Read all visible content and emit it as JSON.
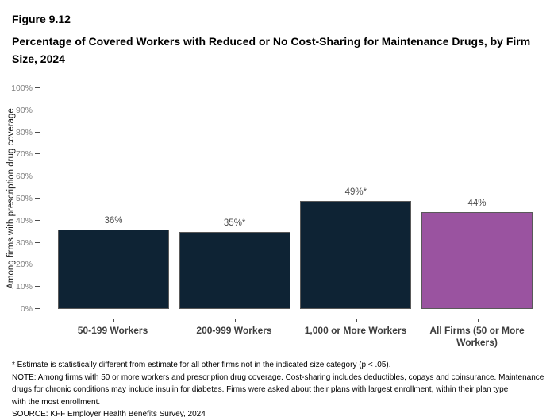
{
  "header": {
    "figure_label": "Figure 9.12",
    "title": "Percentage of Covered Workers with Reduced or No Cost-Sharing for Maintenance Drugs, by Firm Size, 2024"
  },
  "chart_data": {
    "type": "bar",
    "title": "Percentage of Covered Workers with Reduced or No Cost-Sharing for Maintenance Drugs, by Firm Size, 2024",
    "categories": [
      "50-199 Workers",
      "200-999 Workers",
      "1,000 or More Workers",
      "All Firms (50 or More Workers)"
    ],
    "values": [
      36,
      35,
      49,
      44
    ],
    "value_labels": [
      "36%",
      "35%*",
      "49%*",
      "44%"
    ],
    "bar_colors": [
      "#0e2334",
      "#0e2334",
      "#0e2334",
      "#9a53a0"
    ],
    "xlabel": "",
    "ylabel": "Among firms with prescription drug coverage",
    "ylim": [
      0,
      100
    ],
    "yticks": [
      0,
      10,
      20,
      30,
      40,
      50,
      60,
      70,
      80,
      90,
      100
    ],
    "ytick_labels": [
      "0%",
      "10%",
      "20%",
      "30%",
      "40%",
      "50%",
      "60%",
      "70%",
      "80%",
      "90%",
      "100%"
    ],
    "grid": false,
    "legend": "none"
  },
  "footnotes": {
    "asterisk": "* Estimate is statistically different from estimate for all other firms not in the indicated size category (p < .05).",
    "note_lines": [
      "NOTE: Among firms with 50 or more workers and prescription drug coverage. Cost-sharing includes deductibles, copays and coinsurance. Maintenance",
      "drugs for chronic conditions may include insulin for diabetes. Firms were asked about their plans with largest enrollment, within their plan type",
      "with the most enrollment."
    ],
    "source": "SOURCE: KFF Employer Health Benefits Survey, 2024"
  }
}
